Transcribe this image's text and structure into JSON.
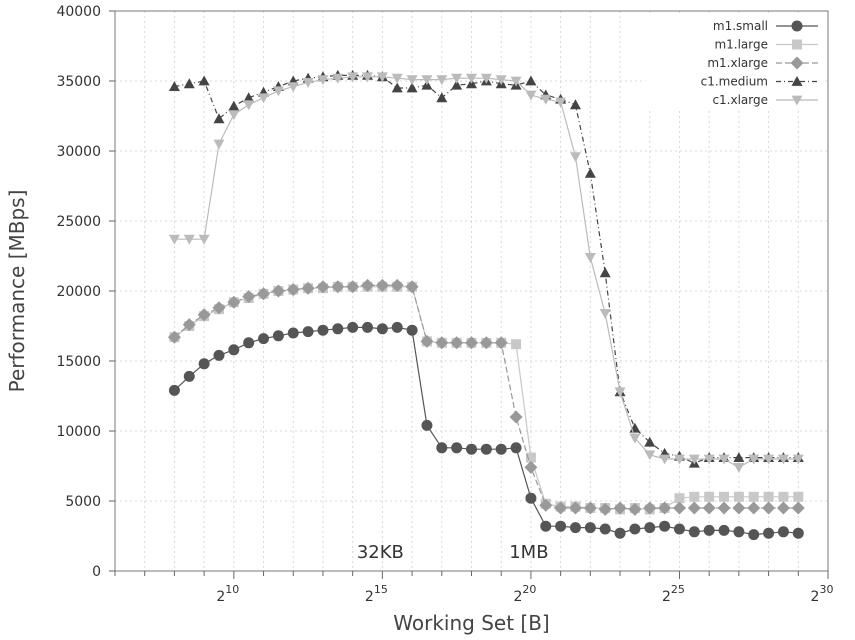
{
  "chart_data": {
    "type": "line",
    "title": "",
    "xlabel": "Working Set [B]",
    "ylabel": "Performance [MBps]",
    "x_scale": "log2",
    "xlim": [
      6.0,
      30
    ],
    "ylim": [
      0,
      40000
    ],
    "x_ticks": [
      {
        "exp": 10,
        "base": "2",
        "sup": "10"
      },
      {
        "exp": 15,
        "base": "2",
        "sup": "15"
      },
      {
        "exp": 20,
        "base": "2",
        "sup": "20"
      },
      {
        "exp": 25,
        "base": "2",
        "sup": "25"
      },
      {
        "exp": 30,
        "base": "2",
        "sup": "30"
      }
    ],
    "y_ticks": [
      0,
      5000,
      10000,
      15000,
      20000,
      25000,
      30000,
      35000,
      40000
    ],
    "grid": true,
    "legend_position": "top-right",
    "annotations": [
      {
        "text": "32KB",
        "x": 15,
        "y": 1000
      },
      {
        "text": "1MB",
        "x": 20,
        "y": 1000
      }
    ],
    "series": [
      {
        "name": "m1.small",
        "marker": "circle",
        "color": "#555555",
        "dash": "",
        "x": [
          8,
          8.5,
          9,
          9.5,
          10,
          10.5,
          11,
          11.5,
          12,
          12.5,
          13,
          13.5,
          14,
          14.5,
          15,
          15.5,
          16,
          16.5,
          17,
          17.5,
          18,
          18.5,
          19,
          19.5,
          20,
          20.5,
          21,
          21.5,
          22,
          22.5,
          23,
          23.5,
          24,
          24.5,
          25,
          25.5,
          26,
          26.5,
          27,
          27.5,
          28,
          28.5,
          29
        ],
        "y": [
          12900,
          13900,
          14800,
          15400,
          15800,
          16300,
          16600,
          16800,
          17000,
          17100,
          17200,
          17300,
          17400,
          17400,
          17300,
          17400,
          17200,
          10400,
          8800,
          8800,
          8700,
          8700,
          8700,
          8800,
          5200,
          3200,
          3200,
          3100,
          3100,
          3000,
          2700,
          3000,
          3100,
          3200,
          3000,
          2800,
          2900,
          2900,
          2800,
          2600,
          2700,
          2800,
          2700
        ]
      },
      {
        "name": "m1.large",
        "marker": "square",
        "color": "#c8c8c8",
        "dash": "",
        "x": [
          8,
          8.5,
          9,
          9.5,
          10,
          10.5,
          11,
          11.5,
          12,
          12.5,
          13,
          13.5,
          14,
          14.5,
          15,
          15.5,
          16,
          16.5,
          17,
          17.5,
          18,
          18.5,
          19,
          19.5,
          20,
          20.5,
          21,
          21.5,
          22,
          22.5,
          23,
          23.5,
          24,
          24.5,
          25,
          25.5,
          26,
          26.5,
          27,
          27.5,
          28,
          28.5,
          29
        ],
        "y": [
          16700,
          17500,
          18200,
          18700,
          19200,
          19500,
          19800,
          20000,
          20100,
          20200,
          20200,
          20300,
          20300,
          20300,
          20300,
          20300,
          20300,
          16400,
          16300,
          16300,
          16300,
          16300,
          16300,
          16200,
          8100,
          4800,
          4600,
          4600,
          4500,
          4500,
          4400,
          4500,
          4400,
          4500,
          5200,
          5300,
          5300,
          5300,
          5300,
          5300,
          5300,
          5300,
          5300
        ]
      },
      {
        "name": "m1.xlarge",
        "marker": "diamond",
        "color": "#999999",
        "dash": "6,3",
        "x": [
          8,
          8.5,
          9,
          9.5,
          10,
          10.5,
          11,
          11.5,
          12,
          12.5,
          13,
          13.5,
          14,
          14.5,
          15,
          15.5,
          16,
          16.5,
          17,
          17.5,
          18,
          18.5,
          19,
          19.5,
          20,
          20.5,
          21,
          21.5,
          22,
          22.5,
          23,
          23.5,
          24,
          24.5,
          25,
          25.5,
          26,
          26.5,
          27,
          27.5,
          28,
          28.5,
          29
        ],
        "y": [
          16700,
          17600,
          18300,
          18800,
          19200,
          19600,
          19800,
          20000,
          20100,
          20200,
          20300,
          20300,
          20300,
          20400,
          20400,
          20400,
          20300,
          16400,
          16300,
          16300,
          16300,
          16300,
          16300,
          11000,
          7400,
          4700,
          4500,
          4500,
          4500,
          4400,
          4500,
          4400,
          4500,
          4500,
          4500,
          4500,
          4500,
          4500,
          4500,
          4500,
          4500,
          4500,
          4500
        ]
      },
      {
        "name": "c1.medium",
        "marker": "triangle-up",
        "color": "#444444",
        "dash": "5,3,1,3",
        "x": [
          8,
          8.5,
          9,
          9.5,
          10,
          10.5,
          11,
          11.5,
          12,
          12.5,
          13,
          13.5,
          14,
          14.5,
          15,
          15.5,
          16,
          16.5,
          17,
          17.5,
          18,
          18.5,
          19,
          19.5,
          20,
          20.5,
          21,
          21.5,
          22,
          22.5,
          23,
          23.5,
          24,
          24.5,
          25,
          25.5,
          26,
          26.5,
          27,
          27.5,
          28,
          28.5,
          29
        ],
        "y": [
          34600,
          34800,
          35000,
          32300,
          33200,
          33800,
          34200,
          34600,
          35000,
          35200,
          35300,
          35400,
          35400,
          35400,
          35300,
          34500,
          34500,
          34700,
          33800,
          34700,
          34800,
          35000,
          34800,
          34700,
          35000,
          34000,
          33700,
          33300,
          28400,
          21300,
          12800,
          10200,
          9200,
          8400,
          8200,
          7700,
          8100,
          8100,
          8100,
          8100,
          8100,
          8100,
          8100
        ]
      },
      {
        "name": "c1.xlarge",
        "marker": "triangle-down",
        "color": "#bbbbbb",
        "dash": "",
        "x": [
          8,
          8.5,
          9,
          9.5,
          10,
          10.5,
          11,
          11.5,
          12,
          12.5,
          13,
          13.5,
          14,
          14.5,
          15,
          15.5,
          16,
          16.5,
          17,
          17.5,
          18,
          18.5,
          19,
          19.5,
          20,
          20.5,
          21,
          21.5,
          22,
          22.5,
          23,
          23.5,
          24,
          24.5,
          25,
          25.5,
          26,
          26.5,
          27,
          27.5,
          28,
          28.5,
          29
        ],
        "y": [
          23700,
          23700,
          23700,
          30500,
          32600,
          33300,
          33800,
          34300,
          34600,
          34900,
          35100,
          35200,
          35300,
          35300,
          35300,
          35200,
          35100,
          35100,
          35100,
          35200,
          35200,
          35200,
          35100,
          35000,
          34000,
          33700,
          33500,
          29600,
          22400,
          18400,
          12800,
          9500,
          8300,
          8000,
          8000,
          8000,
          8000,
          8000,
          7400,
          8000,
          8000,
          8000,
          8000
        ]
      }
    ]
  }
}
